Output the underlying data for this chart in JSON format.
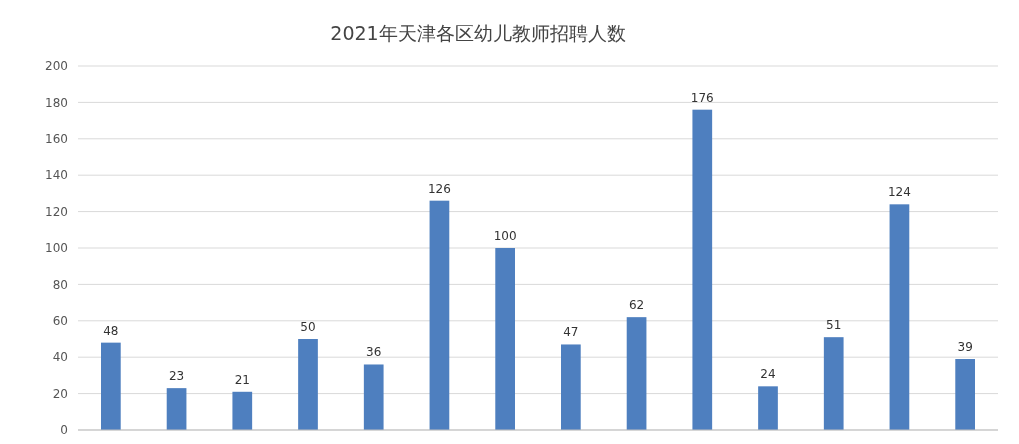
{
  "chart_data": {
    "type": "bar",
    "title": "2021年天津各区幼儿教师招聘人数",
    "categories": [
      null,
      null,
      null,
      null,
      null,
      null,
      null,
      null,
      null,
      null,
      null,
      null,
      null,
      null
    ],
    "values": [
      48,
      23,
      21,
      50,
      36,
      126,
      100,
      47,
      62,
      176,
      24,
      51,
      124,
      39
    ],
    "color": "#4e7fbf",
    "ylim": [
      0,
      200
    ],
    "yticks": [
      0,
      20,
      40,
      60,
      80,
      100,
      120,
      140,
      160,
      180,
      200
    ],
    "grid": "y",
    "data_labels": true
  }
}
